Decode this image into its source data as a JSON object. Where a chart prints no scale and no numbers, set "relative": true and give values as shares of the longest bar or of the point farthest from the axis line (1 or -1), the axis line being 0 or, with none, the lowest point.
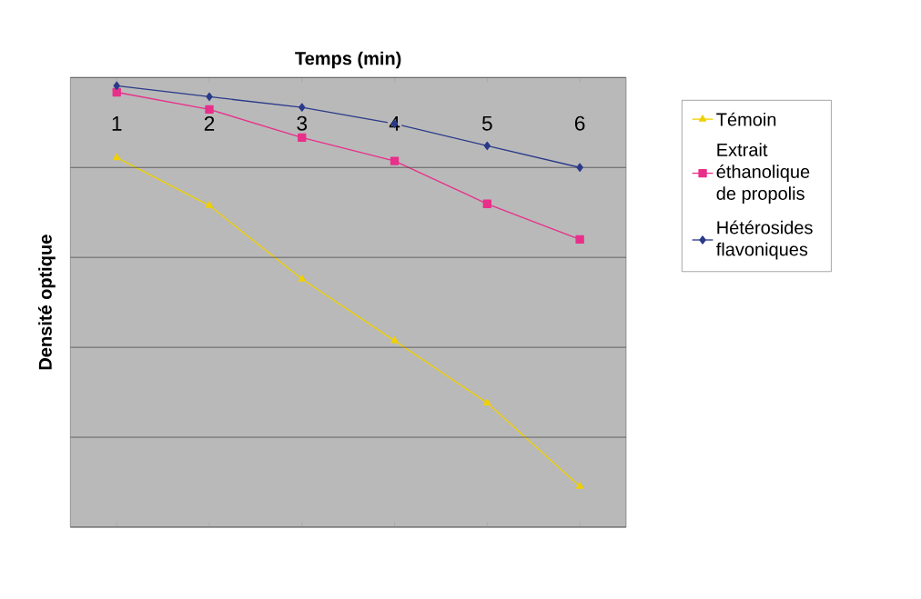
{
  "chart_data": {
    "type": "line",
    "relative": true,
    "xlabel": "Temps (min)",
    "ylabel": "Densité optique",
    "categories": [
      "1",
      "2",
      "3",
      "4",
      "5",
      "6"
    ],
    "grid": "y",
    "legend": "right",
    "series": [
      {
        "name": "Témoin",
        "color": "#f0d000",
        "marker": "triangle",
        "values": [
          -0.196,
          -0.313,
          -0.493,
          -0.644,
          -0.796,
          -1
        ]
      },
      {
        "name": "Extrait éthanolique de propolis",
        "color": "#e8308a",
        "marker": "square",
        "values": [
          -0.036,
          -0.078,
          -0.147,
          -0.204,
          -0.309,
          -0.396
        ]
      },
      {
        "name": "Hétérosides flavoniques",
        "color": "#2a3a8a",
        "marker": "diamond",
        "values": [
          -0.02,
          -0.047,
          -0.073,
          -0.113,
          -0.167,
          -0.22
        ]
      }
    ]
  }
}
